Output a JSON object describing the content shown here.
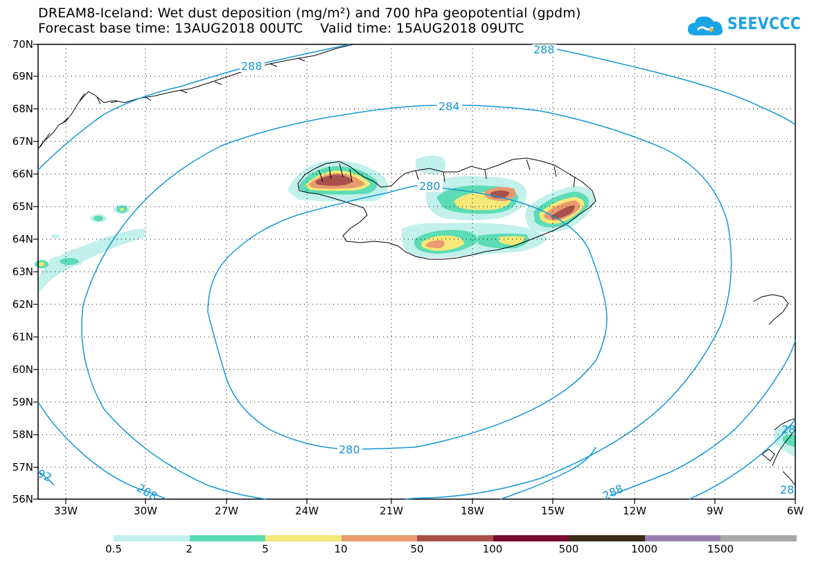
{
  "title": {
    "line1": "DREAM8-Iceland: Wet dust deposition (mg/m²) and 700 hPa geopotential (gpdm)",
    "line2": "Forecast base time: 13AUG2018 00UTC    Valid time: 15AUG2018 09UTC"
  },
  "logo": {
    "text": "SEEVCCC",
    "icon": "cloud-logo-icon"
  },
  "map": {
    "lat_labels": [
      "70N",
      "69N",
      "68N",
      "67N",
      "66N",
      "65N",
      "64N",
      "63N",
      "62N",
      "61N",
      "60N",
      "59N",
      "58N",
      "57N",
      "56N"
    ],
    "lon_labels": [
      "33W",
      "30W",
      "27W",
      "24W",
      "21W",
      "18W",
      "15W",
      "12W",
      "9W",
      "6W"
    ],
    "contour_labels": [
      "288",
      "288",
      "284",
      "280",
      "280",
      "288",
      "288",
      "92",
      "28",
      "28"
    ]
  },
  "legend": {
    "labels": [
      "0.5",
      "2",
      "5",
      "10",
      "50",
      "100",
      "500",
      "1000",
      "1500"
    ],
    "colors": [
      "#c2f0eb",
      "#5cdcb4",
      "#f5e878",
      "#e89a70",
      "#a8504a",
      "#7a0a30",
      "#3a2a18",
      "#9a80b0",
      "#a8a8a8"
    ]
  },
  "colors": {
    "contour": "#1496d6",
    "coast": "#000000"
  }
}
